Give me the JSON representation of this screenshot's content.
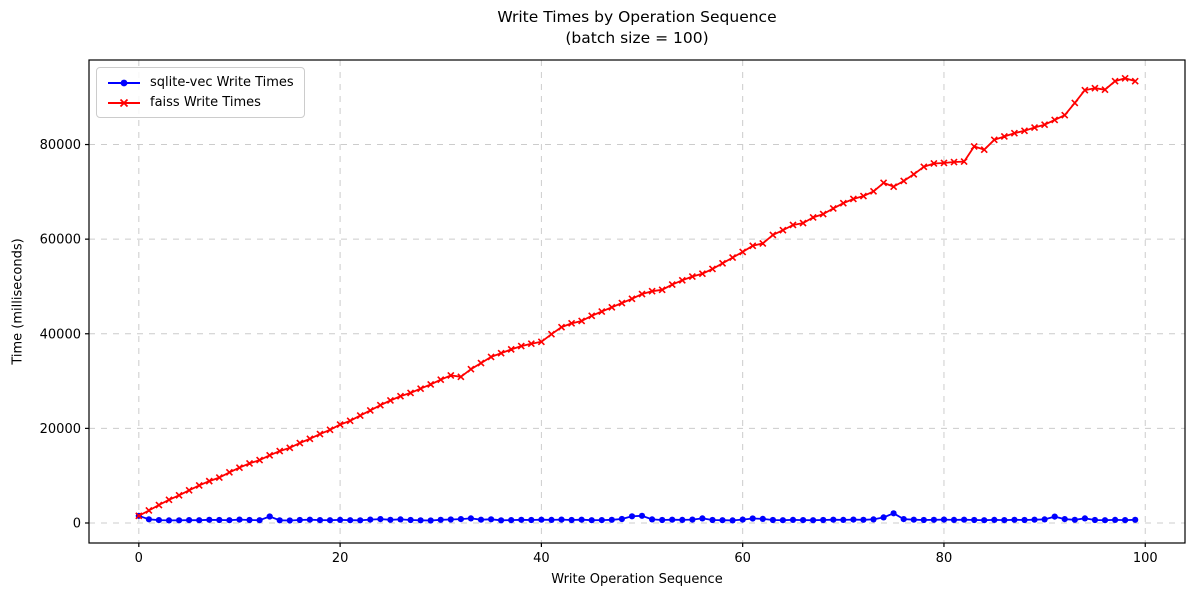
{
  "title_line1": "Write Times by Operation Sequence",
  "title_line2": "(batch size = 100)",
  "legend": {
    "items": [
      {
        "label": "sqlite-vec Write Times",
        "color": "#0000ff",
        "marker": "circle"
      },
      {
        "label": "faiss Write Times",
        "color": "#ff0000",
        "marker": "x"
      }
    ]
  },
  "chart_data": {
    "type": "line",
    "title": "Write Times by Operation Sequence (batch size = 100)",
    "xlabel": "Write Operation Sequence",
    "ylabel": "Time (milliseconds)",
    "xlim": [
      -4.95,
      103.95
    ],
    "ylim": [
      -4230,
      97870
    ],
    "x_ticks": [
      0,
      20,
      40,
      60,
      80,
      100
    ],
    "x_tick_labels": [
      "0",
      "20",
      "40",
      "60",
      "80",
      "100"
    ],
    "y_ticks": [
      0,
      20000,
      40000,
      60000,
      80000
    ],
    "y_tick_labels": [
      "0",
      "20000",
      "40000",
      "60000",
      "80000"
    ],
    "grid": "dashed",
    "grid_color": "#cccccc",
    "legend_position": "upper-left",
    "x": [
      0,
      1,
      2,
      3,
      4,
      5,
      6,
      7,
      8,
      9,
      10,
      11,
      12,
      13,
      14,
      15,
      16,
      17,
      18,
      19,
      20,
      21,
      22,
      23,
      24,
      25,
      26,
      27,
      28,
      29,
      30,
      31,
      32,
      33,
      34,
      35,
      36,
      37,
      38,
      39,
      40,
      41,
      42,
      43,
      44,
      45,
      46,
      47,
      48,
      49,
      50,
      51,
      52,
      53,
      54,
      55,
      56,
      57,
      58,
      59,
      60,
      61,
      62,
      63,
      64,
      65,
      66,
      67,
      68,
      69,
      70,
      71,
      72,
      73,
      74,
      75,
      76,
      77,
      78,
      79,
      80,
      81,
      82,
      83,
      84,
      85,
      86,
      87,
      88,
      89,
      90,
      91,
      92,
      93,
      94,
      95,
      96,
      97,
      98,
      99
    ],
    "series": [
      {
        "name": "sqlite-vec Write Times",
        "color": "#0000ff",
        "marker": "o",
        "values": [
          1520,
          780,
          620,
          540,
          560,
          620,
          580,
          680,
          640,
          600,
          720,
          640,
          580,
          1380,
          560,
          520,
          640,
          700,
          620,
          580,
          660,
          600,
          560,
          720,
          820,
          680,
          760,
          640,
          560,
          520,
          680,
          740,
          820,
          960,
          700,
          780,
          560,
          620,
          680,
          640,
          700,
          660,
          720,
          640,
          700,
          580,
          620,
          680,
          840,
          1420,
          1520,
          760,
          640,
          700,
          660,
          720,
          980,
          640,
          580,
          540,
          720,
          940,
          860,
          640,
          600,
          660,
          620,
          580,
          640,
          700,
          660,
          720,
          680,
          760,
          1180,
          2050,
          820,
          700,
          640,
          680,
          720,
          660,
          700,
          640,
          600,
          660,
          620,
          680,
          640,
          700,
          760,
          1360,
          820,
          680,
          960,
          640,
          600,
          660,
          620,
          680
        ]
      },
      {
        "name": "faiss Write Times",
        "color": "#ff0000",
        "marker": "x",
        "values": [
          1520,
          2650,
          3800,
          4900,
          5850,
          6900,
          7950,
          8850,
          9600,
          10700,
          11700,
          12600,
          13300,
          14300,
          15200,
          15900,
          16900,
          17800,
          18800,
          19700,
          20800,
          21600,
          22700,
          23800,
          24900,
          25900,
          26800,
          27500,
          28400,
          29300,
          30300,
          31200,
          30900,
          32500,
          33800,
          35100,
          35900,
          36700,
          37400,
          37900,
          38300,
          39900,
          41400,
          42200,
          42700,
          43800,
          44700,
          45600,
          46500,
          47400,
          48400,
          49000,
          49300,
          50400,
          51300,
          52100,
          52700,
          53700,
          54900,
          56100,
          57300,
          58600,
          59100,
          60900,
          61900,
          63000,
          63400,
          64600,
          65300,
          66500,
          67600,
          68500,
          69100,
          70100,
          71900,
          71100,
          72300,
          73700,
          75300,
          76000,
          76100,
          76300,
          76400,
          79600,
          78900,
          81000,
          81700,
          82400,
          82900,
          83600,
          84200,
          85200,
          86200,
          88800,
          91500,
          91900,
          91600,
          93400,
          94000,
          93400
        ]
      }
    ]
  }
}
